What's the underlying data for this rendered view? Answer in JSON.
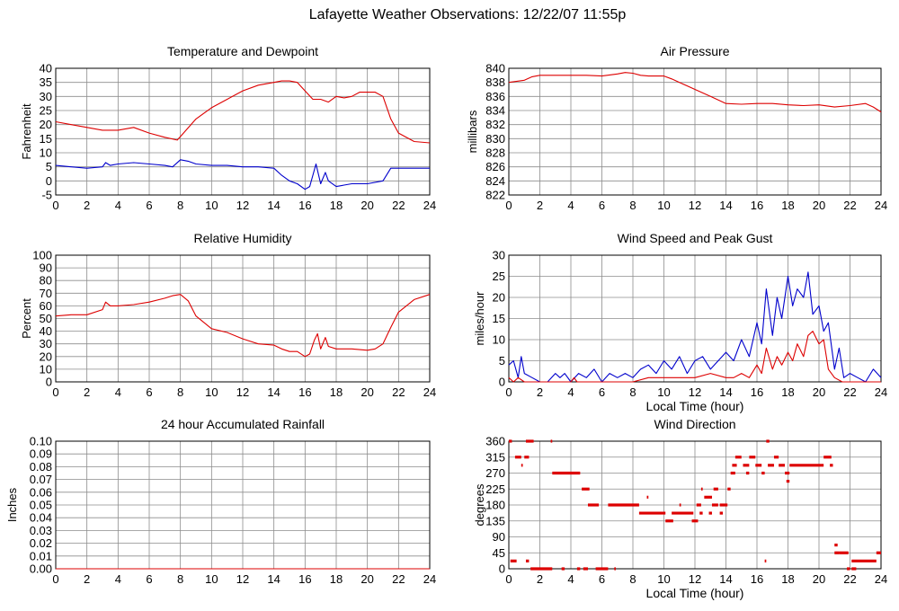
{
  "page": {
    "title": "Lafayette Weather Observations: 12/22/07 11:55p"
  },
  "colors": {
    "red": "#dd0000",
    "blue": "#0000cc",
    "grid": "#8c8c8c",
    "axis": "#000000"
  },
  "chart_data": [
    {
      "id": "temp",
      "type": "line",
      "title": "Temperature and Dewpoint",
      "xlabel": "",
      "ylabel": "Fahrenheit",
      "xlim": [
        0,
        24
      ],
      "xticks": [
        0,
        2,
        4,
        6,
        8,
        10,
        12,
        14,
        16,
        18,
        20,
        22,
        24
      ],
      "ylim": [
        -5,
        40
      ],
      "yticks": [
        -5,
        0,
        5,
        10,
        15,
        20,
        25,
        30,
        35,
        40
      ],
      "grid": true,
      "series": [
        {
          "color": "#dd0000",
          "x": [
            0,
            1,
            2,
            3,
            4,
            5,
            6,
            7,
            7.8,
            8.2,
            9,
            10,
            11,
            12,
            13,
            14,
            14.5,
            15,
            15.5,
            16,
            16.5,
            17,
            17.5,
            18,
            18.5,
            19,
            19.5,
            20,
            20.5,
            21,
            21.5,
            22,
            23,
            24
          ],
          "y": [
            21,
            20,
            19,
            18,
            18,
            19,
            17,
            15.5,
            14.5,
            17,
            22,
            26,
            29,
            32,
            34,
            35,
            35.5,
            35.5,
            35,
            32,
            29,
            29,
            28,
            30,
            29.5,
            30,
            31.5,
            31.5,
            31.5,
            30,
            22,
            17,
            14,
            13.5
          ]
        },
        {
          "color": "#0000cc",
          "x": [
            0,
            1,
            2,
            3,
            3.2,
            3.5,
            4,
            5,
            6,
            7,
            7.5,
            8,
            8.5,
            9,
            10,
            11,
            12,
            13,
            14,
            14.5,
            15,
            15.5,
            16,
            16.3,
            16.5,
            16.7,
            17,
            17.3,
            17.5,
            18,
            18.5,
            19,
            20,
            21,
            21.5,
            22,
            23,
            24
          ],
          "y": [
            5.5,
            5,
            4.5,
            5,
            6.5,
            5.5,
            6,
            6.5,
            6,
            5.5,
            5,
            7.5,
            7,
            6,
            5.5,
            5.5,
            5,
            5,
            4.5,
            2,
            0,
            -1,
            -3,
            -2,
            2,
            6,
            -1,
            3,
            0,
            -2,
            -1.5,
            -1,
            -1,
            0,
            4.5,
            4.5,
            4.5,
            4.5
          ]
        }
      ]
    },
    {
      "id": "pressure",
      "type": "line",
      "title": "Air Pressure",
      "xlabel": "",
      "ylabel": "millibars",
      "xlim": [
        0,
        24
      ],
      "xticks": [
        0,
        2,
        4,
        6,
        8,
        10,
        12,
        14,
        16,
        18,
        20,
        22,
        24
      ],
      "ylim": [
        822,
        840
      ],
      "yticks": [
        822,
        824,
        826,
        828,
        830,
        832,
        834,
        836,
        838,
        840
      ],
      "grid": true,
      "series": [
        {
          "color": "#dd0000",
          "x": [
            0,
            1,
            1.5,
            2,
            3,
            4,
            5,
            6,
            7,
            7.5,
            8,
            8.5,
            9,
            10,
            10.5,
            11,
            12,
            13,
            14,
            15,
            16,
            17,
            18,
            19,
            20,
            21,
            22,
            23,
            23.5,
            24
          ],
          "y": [
            838,
            838.3,
            838.8,
            839,
            839,
            839,
            839,
            838.9,
            839.2,
            839.4,
            839.3,
            839,
            838.9,
            838.9,
            838.5,
            838,
            837,
            836,
            835,
            834.9,
            835,
            835,
            834.8,
            834.7,
            834.8,
            834.5,
            834.7,
            835,
            834.5,
            833.8
          ]
        }
      ]
    },
    {
      "id": "humidity",
      "type": "line",
      "title": "Relative Humidity",
      "xlabel": "",
      "ylabel": "Percent",
      "xlim": [
        0,
        24
      ],
      "xticks": [
        0,
        2,
        4,
        6,
        8,
        10,
        12,
        14,
        16,
        18,
        20,
        22,
        24
      ],
      "ylim": [
        0,
        100
      ],
      "yticks": [
        0,
        10,
        20,
        30,
        40,
        50,
        60,
        70,
        80,
        90,
        100
      ],
      "grid": true,
      "series": [
        {
          "color": "#dd0000",
          "x": [
            0,
            1,
            2,
            3,
            3.2,
            3.5,
            4,
            5,
            6,
            7,
            7.5,
            8,
            8.5,
            9,
            10,
            11,
            12,
            13,
            14,
            14.5,
            15,
            15.5,
            16,
            16.3,
            16.6,
            16.8,
            17,
            17.3,
            17.5,
            18,
            19,
            20,
            20.5,
            21,
            21.5,
            22,
            23,
            24
          ],
          "y": [
            52,
            53,
            53,
            57,
            63,
            60,
            60,
            61,
            63,
            66,
            68,
            69,
            64,
            52,
            42,
            39,
            34,
            30,
            29,
            26,
            24,
            24,
            20,
            22,
            33,
            38,
            26,
            35,
            28,
            26,
            26,
            25,
            26,
            30,
            43,
            55,
            65,
            69
          ]
        }
      ]
    },
    {
      "id": "wind",
      "type": "line",
      "title": "Wind Speed and Peak Gust",
      "xlabel": "Local Time (hour)",
      "ylabel": "miles/hour",
      "xlim": [
        0,
        24
      ],
      "xticks": [
        0,
        2,
        4,
        6,
        8,
        10,
        12,
        14,
        16,
        18,
        20,
        22,
        24
      ],
      "ylim": [
        0,
        30
      ],
      "yticks": [
        0,
        5,
        10,
        15,
        20,
        25,
        30
      ],
      "grid": true,
      "series": [
        {
          "color": "#0000cc",
          "x": [
            0,
            0.3,
            0.6,
            0.8,
            1,
            1.5,
            2,
            2.5,
            3,
            3.3,
            3.6,
            4,
            4.5,
            5,
            5.5,
            6,
            6.5,
            7,
            7.5,
            8,
            8.5,
            9,
            9.5,
            10,
            10.5,
            11,
            11.5,
            12,
            12.5,
            13,
            13.5,
            14,
            14.5,
            15,
            15.5,
            16,
            16.3,
            16.6,
            17,
            17.3,
            17.6,
            18,
            18.3,
            18.6,
            19,
            19.3,
            19.6,
            20,
            20.3,
            20.6,
            21,
            21.3,
            21.6,
            22,
            22.5,
            23,
            23.5,
            24
          ],
          "y": [
            4,
            5,
            1,
            6,
            2,
            1,
            0,
            0,
            2,
            1,
            2,
            0,
            2,
            1,
            3,
            0,
            2,
            1,
            2,
            1,
            3,
            4,
            2,
            5,
            3,
            6,
            2,
            5,
            6,
            3,
            5,
            7,
            5,
            10,
            6,
            14,
            9,
            22,
            11,
            20,
            15,
            25,
            18,
            22,
            20,
            26,
            16,
            18,
            12,
            14,
            3,
            8,
            1,
            2,
            1,
            0,
            3,
            1
          ]
        },
        {
          "color": "#dd0000",
          "x": [
            0,
            0.3,
            0.6,
            1,
            1.5,
            2,
            4,
            4.2,
            4.4,
            6,
            8,
            9,
            10,
            12,
            13,
            14,
            14.5,
            15,
            15.5,
            16,
            16.3,
            16.6,
            17,
            17.3,
            17.6,
            18,
            18.3,
            18.6,
            19,
            19.3,
            19.6,
            20,
            20.3,
            20.6,
            21,
            21.5,
            22,
            24
          ],
          "y": [
            1,
            0,
            1,
            0,
            0,
            0,
            0,
            1,
            0,
            0,
            0,
            1,
            1,
            1,
            2,
            1,
            1,
            2,
            1,
            4,
            2,
            8,
            3,
            6,
            4,
            7,
            5,
            9,
            6,
            11,
            12,
            9,
            10,
            3,
            1,
            0,
            0,
            0
          ]
        }
      ]
    },
    {
      "id": "rainfall",
      "type": "line",
      "title": "24 hour Accumulated Rainfall",
      "xlabel": "",
      "ylabel": "Inches",
      "xlim": [
        0,
        24
      ],
      "xticks": [
        0,
        2,
        4,
        6,
        8,
        10,
        12,
        14,
        16,
        18,
        20,
        22,
        24
      ],
      "ylim": [
        0,
        0.1
      ],
      "yticks": [
        0.0,
        0.01,
        0.02,
        0.03,
        0.04,
        0.05,
        0.06,
        0.07,
        0.08,
        0.09,
        0.1
      ],
      "ytick_labels": [
        "0.00",
        "0.01",
        "0.02",
        "0.03",
        "0.04",
        "0.05",
        "0.06",
        "0.07",
        "0.08",
        "0.09",
        "0.10"
      ],
      "grid": true,
      "series": [
        {
          "color": "#dd0000",
          "x": [
            0,
            24
          ],
          "y": [
            0,
            0
          ]
        }
      ]
    },
    {
      "id": "direction",
      "type": "scatter",
      "title": "Wind Direction",
      "xlabel": "Local Time (hour)",
      "ylabel": "degrees",
      "xlim": [
        0,
        24
      ],
      "xticks": [
        0,
        2,
        4,
        6,
        8,
        10,
        12,
        14,
        16,
        18,
        20,
        22,
        24
      ],
      "ylim": [
        0,
        360
      ],
      "yticks": [
        0,
        45,
        90,
        135,
        180,
        225,
        270,
        315,
        360
      ],
      "grid": true,
      "segments": [
        [
          0,
          0.2,
          360
        ],
        [
          0.1,
          0.5,
          22
        ],
        [
          0.4,
          0.8,
          315
        ],
        [
          0.8,
          0.9,
          292
        ],
        [
          1,
          1.3,
          315
        ],
        [
          1.1,
          1.3,
          22
        ],
        [
          1.1,
          1.6,
          360
        ],
        [
          1.4,
          2.8,
          0
        ],
        [
          2.7,
          2.8,
          360
        ],
        [
          2.8,
          4.6,
          270
        ],
        [
          3.4,
          3.6,
          0
        ],
        [
          4.4,
          4.6,
          0
        ],
        [
          4.7,
          5.2,
          225
        ],
        [
          4.8,
          5.1,
          0
        ],
        [
          5.1,
          5.8,
          180
        ],
        [
          5.6,
          6.4,
          0
        ],
        [
          6.4,
          8.4,
          180
        ],
        [
          6.8,
          6.9,
          0
        ],
        [
          8.4,
          10.1,
          157
        ],
        [
          8.9,
          9,
          202
        ],
        [
          10.1,
          10.6,
          135
        ],
        [
          10.5,
          11.9,
          157
        ],
        [
          11,
          11.1,
          180
        ],
        [
          11.8,
          12.2,
          135
        ],
        [
          12.1,
          12.4,
          180
        ],
        [
          12.3,
          12.5,
          157
        ],
        [
          12.4,
          12.5,
          225
        ],
        [
          12.6,
          13.1,
          202
        ],
        [
          12.9,
          13.1,
          157
        ],
        [
          13.1,
          13.5,
          180
        ],
        [
          13.2,
          13.5,
          225
        ],
        [
          13.6,
          14.1,
          180
        ],
        [
          13.6,
          13.8,
          157
        ],
        [
          14.1,
          14.3,
          225
        ],
        [
          14.3,
          14.6,
          270
        ],
        [
          14.4,
          14.7,
          292
        ],
        [
          14.6,
          15,
          315
        ],
        [
          15.1,
          15.5,
          292
        ],
        [
          15.3,
          15.5,
          270
        ],
        [
          15.5,
          15.9,
          315
        ],
        [
          15.9,
          16.3,
          292
        ],
        [
          16.3,
          16.5,
          270
        ],
        [
          16.5,
          16.6,
          22
        ],
        [
          16.6,
          16.8,
          360
        ],
        [
          16.7,
          17.1,
          292
        ],
        [
          17.1,
          17.4,
          315
        ],
        [
          17.4,
          17.8,
          292
        ],
        [
          17.8,
          18.1,
          270
        ],
        [
          17.9,
          18.1,
          247
        ],
        [
          18.1,
          20.3,
          292
        ],
        [
          20.3,
          20.8,
          315
        ],
        [
          20.7,
          20.9,
          292
        ],
        [
          21,
          21.2,
          67
        ],
        [
          21,
          21.3,
          45
        ],
        [
          21.3,
          21.9,
          45
        ],
        [
          21.8,
          22,
          0
        ],
        [
          22.1,
          22.4,
          0
        ],
        [
          22.1,
          23.7,
          22
        ],
        [
          23.7,
          24,
          45
        ]
      ]
    }
  ]
}
